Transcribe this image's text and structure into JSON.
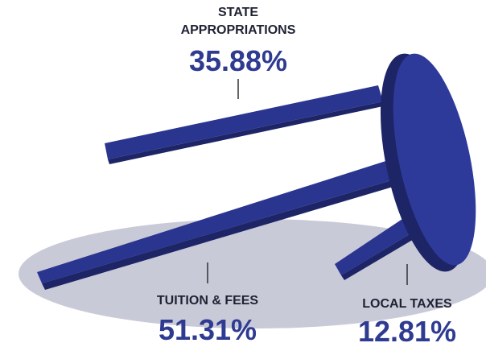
{
  "items": [
    {
      "label_lines": [
        "STATE",
        "APPROPRIATIONS"
      ],
      "value": "35.88%"
    },
    {
      "label_lines": [
        "TUITION & FEES"
      ],
      "value": "51.31%"
    },
    {
      "label_lines": [
        "LOCAL TAXES"
      ],
      "value": "12.81%"
    }
  ]
}
